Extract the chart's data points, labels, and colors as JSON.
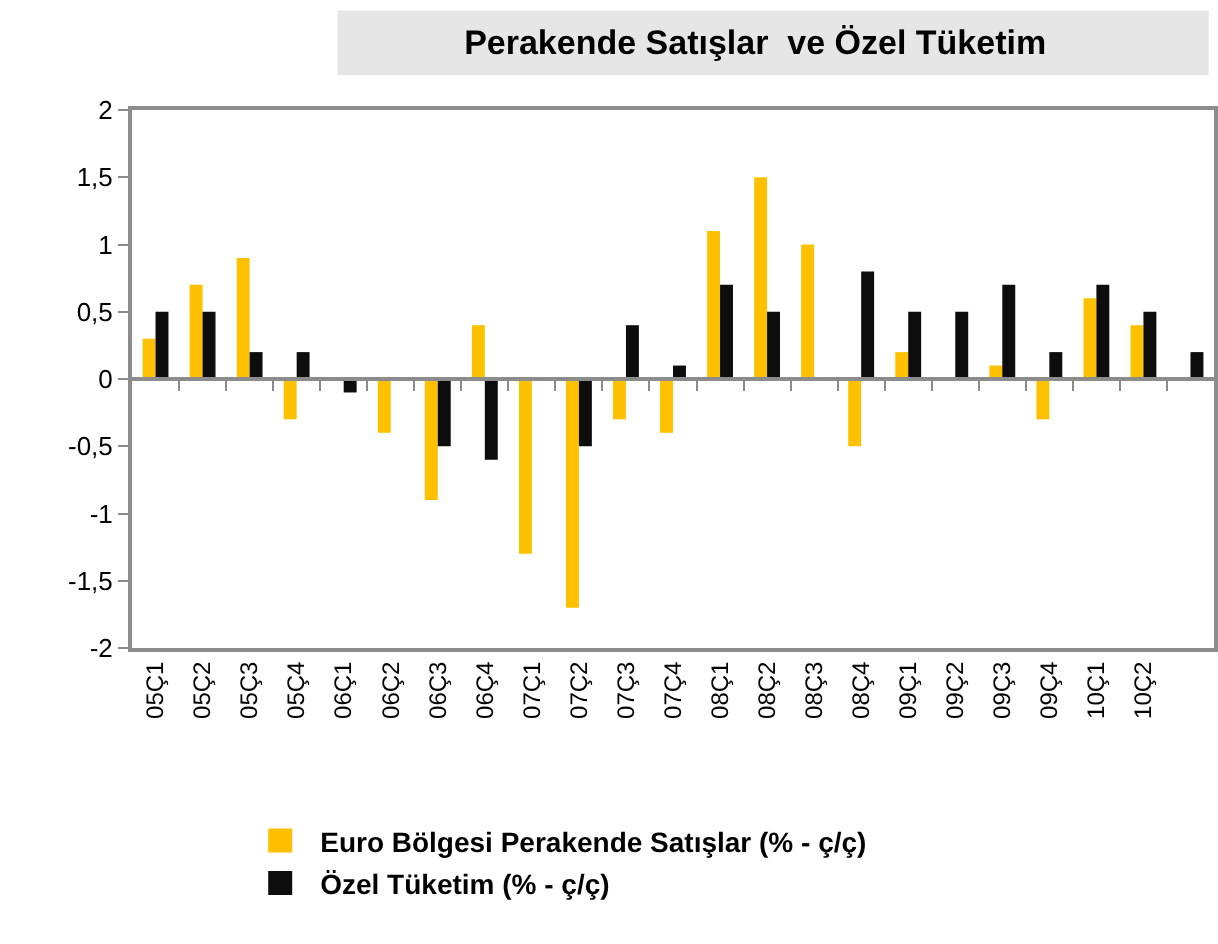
{
  "chart_data": {
    "type": "bar",
    "title": "Perakende Satışlar  ve Özel Tüketim",
    "categories": [
      "05Ç1",
      "05Ç2",
      "05Ç3",
      "05Ç4",
      "06Ç1",
      "06Ç2",
      "06Ç3",
      "06Ç4",
      "07Ç1",
      "07Ç2",
      "07Ç3",
      "07Ç4",
      "08Ç1",
      "08Ç2",
      "08Ç3",
      "08Ç4",
      "09Ç1",
      "09Ç2",
      "09Ç3",
      "09Ç4",
      "10Ç1",
      "10Ç2",
      null
    ],
    "series": [
      {
        "name": "Euro Bölgesi Perakende Satışlar (% - ç/ç)",
        "color": "#ffc000",
        "values": [
          0.3,
          0.7,
          0.9,
          -0.3,
          null,
          -0.4,
          -0.9,
          0.4,
          -1.3,
          -1.7,
          -0.3,
          -0.4,
          1.1,
          1.5,
          1.0,
          -0.5,
          0.2,
          null,
          0.1,
          -0.3,
          0.6,
          0.4,
          null
        ]
      },
      {
        "name": "Özel Tüketim (% - ç/ç)",
        "color": "#0d0d0d",
        "values": [
          0.5,
          0.5,
          0.2,
          0.2,
          -0.1,
          null,
          -0.5,
          -0.6,
          null,
          -0.5,
          0.4,
          0.1,
          0.7,
          0.5,
          null,
          0.8,
          0.5,
          0.5,
          0.7,
          0.2,
          0.7,
          0.5,
          0.2
        ]
      }
    ],
    "ylim": [
      -2,
      2
    ],
    "yticks": [
      {
        "value": -2,
        "label": "-2"
      },
      {
        "value": -1.5,
        "label": "-1,5"
      },
      {
        "value": -1,
        "label": "-1"
      },
      {
        "value": -0.5,
        "label": "-0,5"
      },
      {
        "value": 0,
        "label": "0"
      },
      {
        "value": 0.5,
        "label": "0,5"
      },
      {
        "value": 1,
        "label": "1"
      },
      {
        "value": 1.5,
        "label": "1,5"
      },
      {
        "value": 2,
        "label": "2"
      }
    ],
    "legend": "bottom"
  }
}
